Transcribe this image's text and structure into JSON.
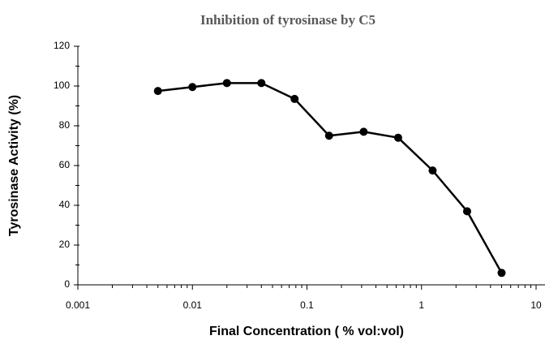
{
  "chart_data": {
    "type": "line",
    "title": "Inhibition of tyrosinase by C5",
    "x_label": "Final Concentration ( % vol:vol)",
    "y_label": "Tyrosinase Activity (%)",
    "x": [
      0.005,
      0.01,
      0.02,
      0.04,
      0.078,
      0.156,
      0.3125,
      0.625,
      1.25,
      2.5,
      5
    ],
    "series": [
      {
        "name": "C5",
        "color": "#000000",
        "values": [
          97.5,
          99.5,
          101.5,
          101.5,
          93.5,
          75,
          77,
          74,
          57.5,
          37,
          6
        ]
      }
    ],
    "xscale": "log",
    "xlim": [
      0.001,
      10
    ],
    "xticks": [
      0.001,
      0.01,
      0.1,
      1,
      10
    ],
    "ylim": [
      0,
      120
    ],
    "yticks": [
      0,
      20,
      40,
      60,
      80,
      100,
      120
    ],
    "grid": false
  }
}
